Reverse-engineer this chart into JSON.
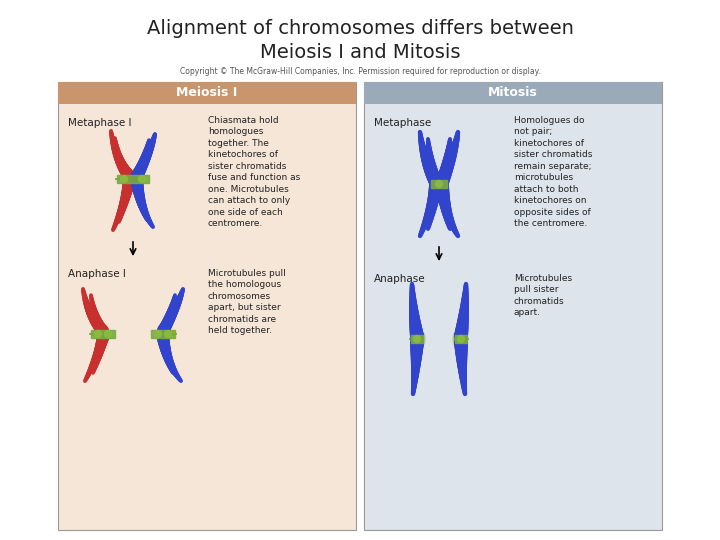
{
  "title_line1": "Alignment of chromosomes differs between",
  "title_line2": "Meiosis I and Mitosis",
  "title_fontsize": 14,
  "title_color": "#222222",
  "background_color": "#ffffff",
  "copyright_text": "Copyright © The McGraw-Hill Companies, Inc. Permission required for reproduction or display.",
  "copyright_fontsize": 5.5,
  "left_panel": {
    "header_text": "Meiosis I",
    "header_bg": "#c8956c",
    "header_text_color": "#ffffff",
    "body_bg": "#f5e6d8",
    "metaphase_label": "Metaphase I",
    "anaphase_label": "Anaphase I",
    "metaphase_desc": "Chiasmata hold\nhomologues\ntogether. The\nkinetochores of\nsister chromatids\nfuse and function as\none. Microtubules\ncan attach to only\none side of each\ncentromere.",
    "anaphase_desc": "Microtubules pull\nthe homologous\nchromosomes\napart, but sister\nchromatids are\nheld together."
  },
  "right_panel": {
    "header_text": "Mitosis",
    "header_bg": "#9baab8",
    "header_text_color": "#ffffff",
    "body_bg": "#dde4ec",
    "metaphase_label": "Metaphase",
    "anaphase_label": "Anaphase",
    "metaphase_desc": "Homologues do\nnot pair;\nkinetochores of\nsister chromatids\nremain separate;\nmicrotubules\nattach to both\nkinetochores on\nopposite sides of\nthe centromere.",
    "anaphase_desc": "Microtubules\npull sister\nchromatids\napart."
  },
  "label_fontsize": 7.5,
  "desc_fontsize": 6.5,
  "header_fontsize": 9
}
